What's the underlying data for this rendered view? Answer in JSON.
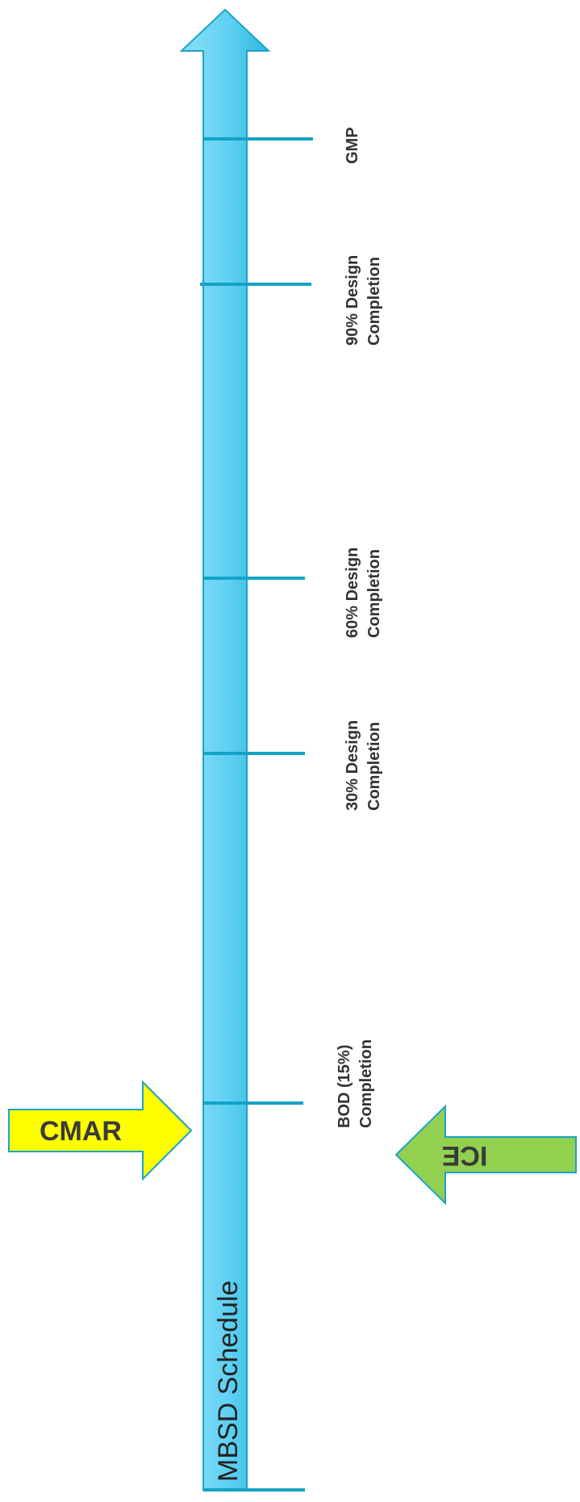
{
  "timeline": {
    "title": "MBSD Schedule",
    "colors": {
      "shaft": "#4cc8ee",
      "shaft_light": "#8fe0f8",
      "outline": "#1ba3c8",
      "tick": "#13a3c4"
    }
  },
  "milestones": [
    {
      "line1": "GMP",
      "line2": ""
    },
    {
      "line1": "90% Design",
      "line2": "Completion"
    },
    {
      "line1": "60% Design",
      "line2": "Completion"
    },
    {
      "line1": "30% Design",
      "line2": "Completion"
    },
    {
      "line1": "BOD (15%)",
      "line2": "Completion"
    }
  ],
  "callouts": {
    "cmar": {
      "label": "CMAR",
      "color": "#ffff00"
    },
    "ice": {
      "label": "ICE",
      "color": "#92d050"
    }
  }
}
